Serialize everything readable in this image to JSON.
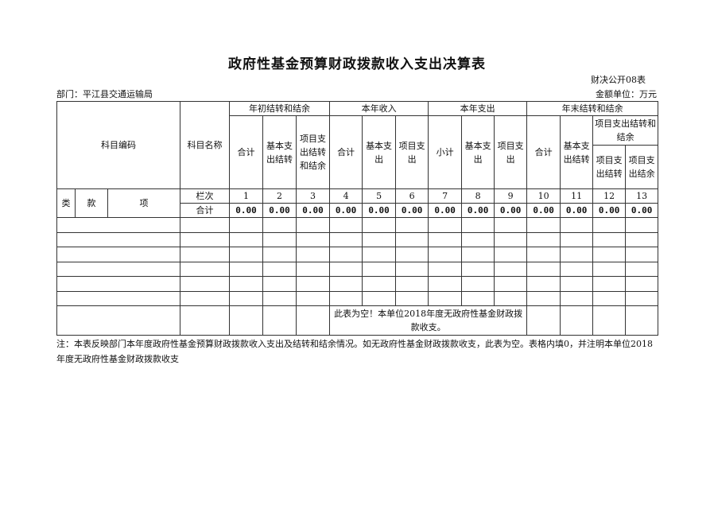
{
  "title": "政府性基金预算财政拨款收入支出决算表",
  "form_no": "财决公开08表",
  "department": "部门：平江县交通运输局",
  "unit": "金额单位：万元",
  "headers": {
    "code": "科目编码",
    "name": "科目名称",
    "groups": [
      "年初结转和结余",
      "本年收入",
      "本年支出",
      "年末结转和结余"
    ],
    "sub": [
      "合计",
      "基本支出结转",
      "项目支出结转和结余",
      "合计",
      "基本支出",
      "项目支出",
      "小计",
      "基本支出",
      "项目支出",
      "合计",
      "基本支出结转",
      "项目支出结转和结余"
    ],
    "subsub": [
      "项目支出结转",
      "项目支出结余"
    ],
    "lei": "类",
    "kuan": "款",
    "xiang": "项",
    "lanci": "栏次",
    "col_numbers": [
      "1",
      "2",
      "3",
      "4",
      "5",
      "6",
      "7",
      "8",
      "9",
      "10",
      "11",
      "12",
      "13"
    ]
  },
  "total_row": {
    "label": "合计",
    "values": [
      "0.00",
      "0.00",
      "0.00",
      "0.00",
      "0.00",
      "0.00",
      "0.00",
      "0.00",
      "0.00",
      "0.00",
      "0.00",
      "0.00",
      "0.00"
    ]
  },
  "empty_message": "此表为空！本单位2018年度无政府性基金财政拨款收支。",
  "note": "注：本表反映部门本年度政府性基金预算财政拨款收入支出及结转和结余情况。如无政府性基金财政拨款收支，此表为空。表格内填0，并注明本单位2018年度无政府性基金财政拨款收支"
}
